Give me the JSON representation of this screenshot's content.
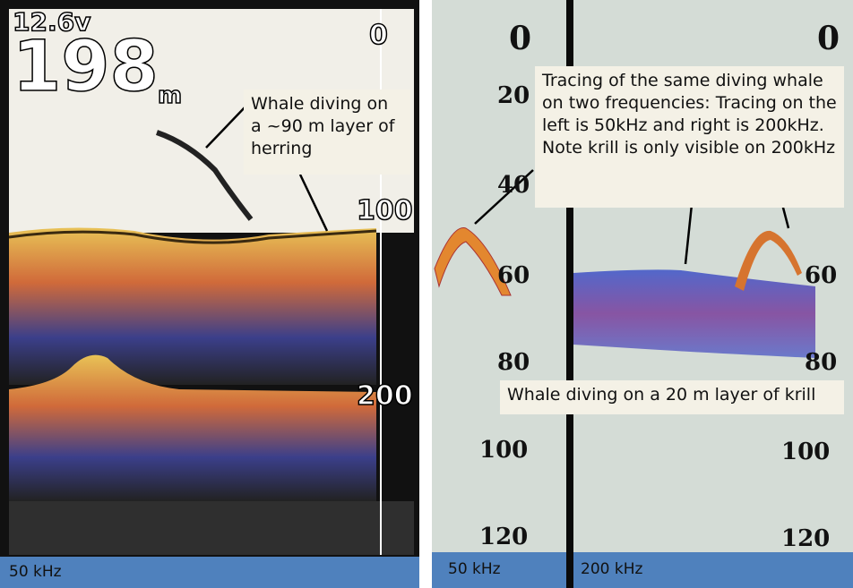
{
  "left_panel": {
    "voltage": "12.6v",
    "depth": "198",
    "depth_unit": "m",
    "scale": [
      "0",
      "100",
      "200"
    ],
    "annotation": "Whale diving on a ~90 m layer of herring",
    "frequency": "50 kHz"
  },
  "right_panel": {
    "left_scale": [
      "0",
      "20",
      "40",
      "60",
      "80",
      "100",
      "120"
    ],
    "right_scale": [
      "0",
      "60",
      "80",
      "100",
      "120"
    ],
    "annotation_top": "Tracing of the same diving whale on two frequencies: Tracing on the left is 50kHz and right is 200kHz.  Note krill is only visible on 200kHz",
    "annotation_bottom": "Whale diving on a 20 m layer of krill",
    "left_frequency": "50 kHz",
    "right_frequency": "200 kHz"
  }
}
